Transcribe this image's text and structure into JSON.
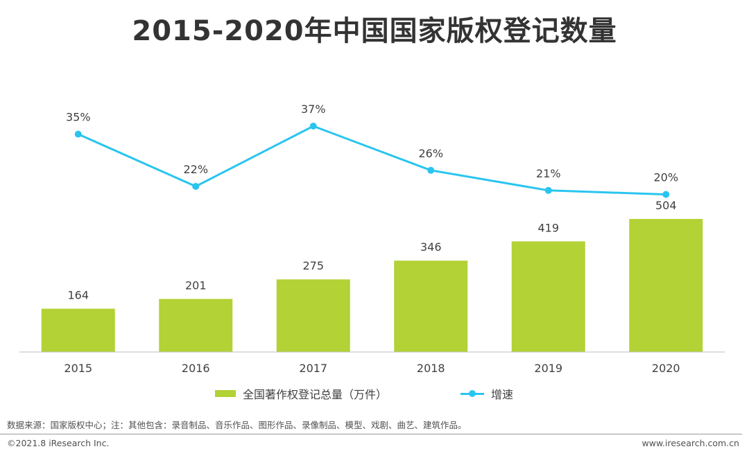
{
  "title": "2015-2020年中国国家版权登记数量",
  "colors": {
    "bar": "#b2d235",
    "line": "#29c5ef",
    "axis": "#bfbfbf",
    "text": "#404040"
  },
  "chart_data": {
    "type": "bar",
    "title": "2015-2020年中国国家版权登记数量",
    "categories": [
      "2015",
      "2016",
      "2017",
      "2018",
      "2019",
      "2020"
    ],
    "series": [
      {
        "name": "全国著作权登记总量（万件）",
        "type": "bar",
        "values": [
          164,
          201,
          275,
          346,
          419,
          504
        ],
        "labels": [
          "164",
          "201",
          "275",
          "346",
          "419",
          "504"
        ]
      },
      {
        "name": "增速",
        "type": "line",
        "values": [
          35,
          22,
          37,
          26,
          21,
          20
        ],
        "labels": [
          "35%",
          "22%",
          "37%",
          "26%",
          "21%",
          "20%"
        ]
      }
    ],
    "legend_position": "bottom",
    "grid": false
  },
  "source": "数据来源：国家版权中心；注：其他包含：录音制品、音乐作品、图形作品、录像制品、模型、戏剧、曲艺、建筑作品。",
  "footer": {
    "copyright": "©2021.8 iResearch Inc.",
    "website": "www.iresearch.com.cn"
  }
}
